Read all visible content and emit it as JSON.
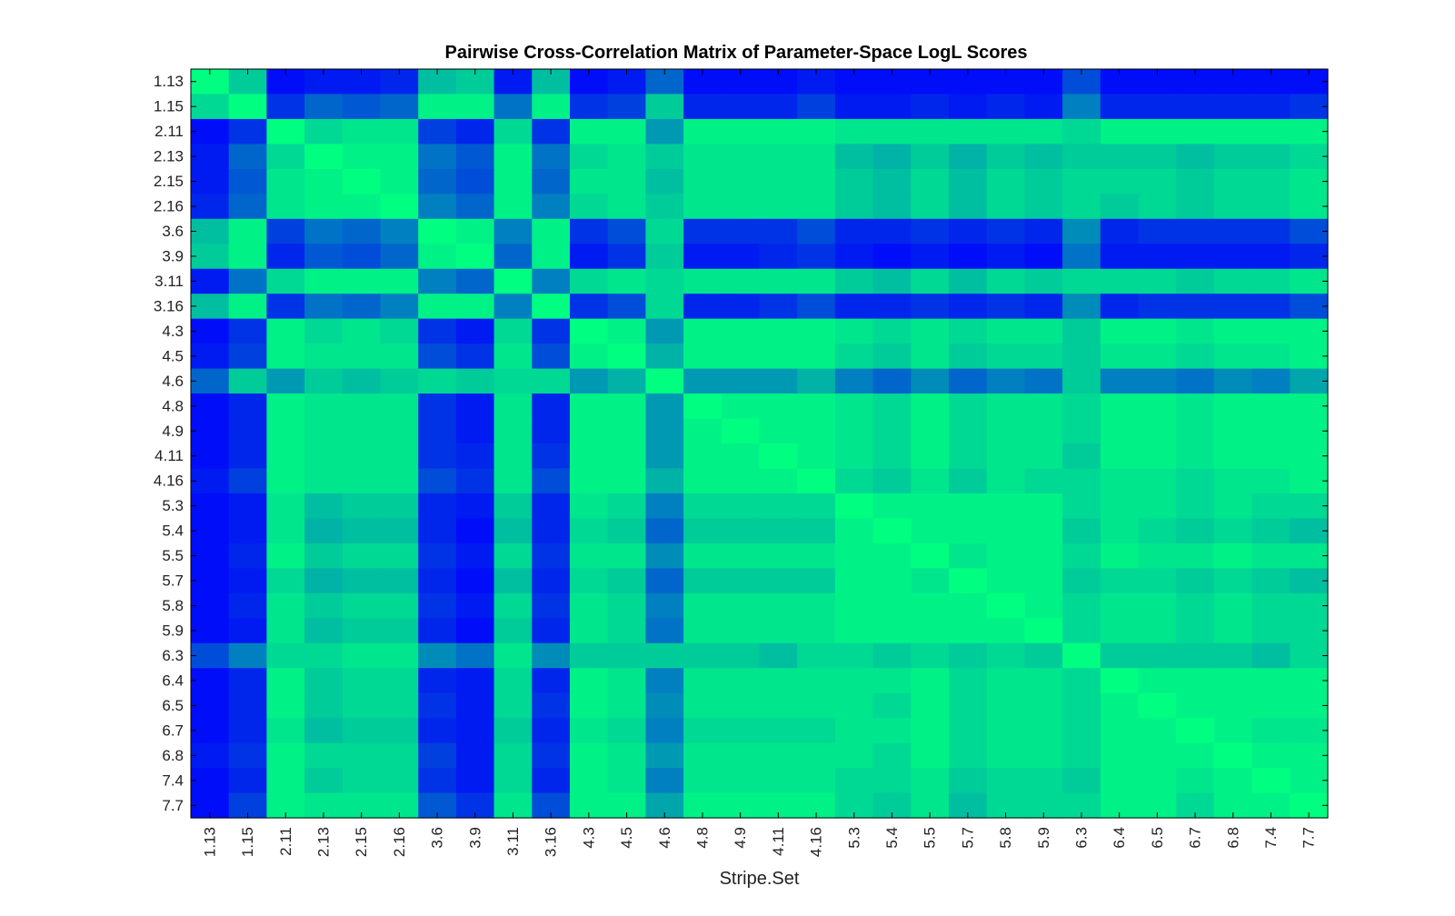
{
  "chart_data": {
    "type": "heatmap",
    "title": "Pairwise Cross-Correlation Matrix of Parameter-Space LogL Scores",
    "xlabel": "Stripe.Set",
    "ylabel": "",
    "labels": [
      "1.13",
      "1.15",
      "2.11",
      "2.13",
      "2.15",
      "2.16",
      "3.6",
      "3.9",
      "3.11",
      "3.16",
      "4.3",
      "4.5",
      "4.6",
      "4.8",
      "4.9",
      "4.11",
      "4.16",
      "5.3",
      "5.4",
      "5.5",
      "5.7",
      "5.8",
      "5.9",
      "6.3",
      "6.4",
      "6.5",
      "6.7",
      "6.8",
      "7.4",
      "7.7"
    ],
    "colormap": {
      "low": "#0000FF",
      "high": "#00FF80"
    },
    "value_range": [
      0,
      1
    ],
    "grid": false,
    "values": [
      [
        1.0,
        0.8,
        0.05,
        0.1,
        0.1,
        0.15,
        0.75,
        0.8,
        0.1,
        0.75,
        0.05,
        0.1,
        0.4,
        0.05,
        0.05,
        0.05,
        0.1,
        0.05,
        0.05,
        0.05,
        0.05,
        0.05,
        0.05,
        0.3,
        0.05,
        0.05,
        0.05,
        0.05,
        0.05,
        0.05
      ],
      [
        0.85,
        1.0,
        0.2,
        0.4,
        0.35,
        0.4,
        0.95,
        0.95,
        0.45,
        0.95,
        0.2,
        0.25,
        0.8,
        0.15,
        0.15,
        0.15,
        0.25,
        0.1,
        0.1,
        0.15,
        0.1,
        0.15,
        0.1,
        0.5,
        0.15,
        0.15,
        0.15,
        0.15,
        0.15,
        0.2
      ],
      [
        0.05,
        0.2,
        1.0,
        0.85,
        0.9,
        0.9,
        0.25,
        0.15,
        0.85,
        0.2,
        0.95,
        0.95,
        0.6,
        0.95,
        0.95,
        0.95,
        0.95,
        0.9,
        0.9,
        0.9,
        0.9,
        0.9,
        0.9,
        0.85,
        0.95,
        0.95,
        0.95,
        0.95,
        0.95,
        0.95
      ],
      [
        0.1,
        0.4,
        0.85,
        1.0,
        0.95,
        0.95,
        0.45,
        0.35,
        0.95,
        0.45,
        0.85,
        0.9,
        0.8,
        0.9,
        0.9,
        0.9,
        0.9,
        0.75,
        0.7,
        0.8,
        0.7,
        0.8,
        0.75,
        0.8,
        0.8,
        0.8,
        0.75,
        0.8,
        0.8,
        0.85
      ],
      [
        0.1,
        0.35,
        0.9,
        0.95,
        1.0,
        0.95,
        0.4,
        0.3,
        0.95,
        0.4,
        0.9,
        0.9,
        0.75,
        0.9,
        0.9,
        0.9,
        0.9,
        0.8,
        0.75,
        0.85,
        0.75,
        0.85,
        0.8,
        0.85,
        0.85,
        0.85,
        0.8,
        0.85,
        0.85,
        0.9
      ],
      [
        0.15,
        0.4,
        0.9,
        0.95,
        0.95,
        1.0,
        0.5,
        0.4,
        0.95,
        0.5,
        0.85,
        0.9,
        0.8,
        0.9,
        0.9,
        0.9,
        0.9,
        0.8,
        0.75,
        0.85,
        0.75,
        0.85,
        0.8,
        0.85,
        0.8,
        0.85,
        0.8,
        0.85,
        0.85,
        0.9
      ],
      [
        0.75,
        0.95,
        0.25,
        0.45,
        0.4,
        0.5,
        1.0,
        0.95,
        0.5,
        0.95,
        0.2,
        0.3,
        0.85,
        0.2,
        0.2,
        0.2,
        0.3,
        0.15,
        0.15,
        0.2,
        0.15,
        0.2,
        0.15,
        0.55,
        0.15,
        0.2,
        0.2,
        0.2,
        0.2,
        0.3
      ],
      [
        0.8,
        0.95,
        0.15,
        0.35,
        0.3,
        0.4,
        0.95,
        1.0,
        0.4,
        0.95,
        0.1,
        0.2,
        0.8,
        0.1,
        0.1,
        0.15,
        0.2,
        0.1,
        0.05,
        0.1,
        0.05,
        0.1,
        0.05,
        0.45,
        0.1,
        0.1,
        0.1,
        0.1,
        0.1,
        0.15
      ],
      [
        0.1,
        0.45,
        0.85,
        0.95,
        0.95,
        0.95,
        0.5,
        0.4,
        1.0,
        0.5,
        0.85,
        0.9,
        0.85,
        0.9,
        0.9,
        0.9,
        0.9,
        0.8,
        0.75,
        0.85,
        0.75,
        0.85,
        0.8,
        0.85,
        0.85,
        0.85,
        0.8,
        0.85,
        0.85,
        0.9
      ],
      [
        0.75,
        0.95,
        0.2,
        0.45,
        0.4,
        0.5,
        0.95,
        0.95,
        0.5,
        1.0,
        0.2,
        0.3,
        0.85,
        0.15,
        0.15,
        0.2,
        0.3,
        0.15,
        0.15,
        0.2,
        0.15,
        0.2,
        0.15,
        0.55,
        0.15,
        0.2,
        0.2,
        0.2,
        0.2,
        0.3
      ],
      [
        0.05,
        0.2,
        0.95,
        0.85,
        0.9,
        0.85,
        0.2,
        0.1,
        0.85,
        0.2,
        1.0,
        0.95,
        0.6,
        0.95,
        0.95,
        0.95,
        0.95,
        0.9,
        0.85,
        0.9,
        0.85,
        0.9,
        0.9,
        0.8,
        0.95,
        0.95,
        0.9,
        0.95,
        0.95,
        0.95
      ],
      [
        0.1,
        0.25,
        0.95,
        0.9,
        0.9,
        0.9,
        0.3,
        0.2,
        0.9,
        0.3,
        0.95,
        1.0,
        0.7,
        0.95,
        0.95,
        0.95,
        0.95,
        0.85,
        0.8,
        0.9,
        0.8,
        0.85,
        0.85,
        0.8,
        0.9,
        0.9,
        0.85,
        0.9,
        0.9,
        0.95
      ],
      [
        0.4,
        0.8,
        0.6,
        0.8,
        0.75,
        0.8,
        0.85,
        0.8,
        0.85,
        0.85,
        0.6,
        0.7,
        1.0,
        0.6,
        0.6,
        0.6,
        0.7,
        0.5,
        0.4,
        0.55,
        0.4,
        0.5,
        0.45,
        0.8,
        0.5,
        0.5,
        0.45,
        0.55,
        0.5,
        0.65
      ],
      [
        0.05,
        0.15,
        0.95,
        0.9,
        0.9,
        0.9,
        0.2,
        0.1,
        0.9,
        0.15,
        0.95,
        0.95,
        0.6,
        1.0,
        0.95,
        0.95,
        0.95,
        0.9,
        0.85,
        0.95,
        0.85,
        0.9,
        0.9,
        0.85,
        0.95,
        0.95,
        0.9,
        0.95,
        0.95,
        0.95
      ],
      [
        0.05,
        0.15,
        0.95,
        0.9,
        0.9,
        0.9,
        0.2,
        0.1,
        0.9,
        0.15,
        0.95,
        0.95,
        0.6,
        0.95,
        1.0,
        0.95,
        0.95,
        0.9,
        0.85,
        0.95,
        0.85,
        0.9,
        0.9,
        0.85,
        0.95,
        0.95,
        0.9,
        0.95,
        0.95,
        0.95
      ],
      [
        0.05,
        0.15,
        0.95,
        0.9,
        0.9,
        0.9,
        0.2,
        0.15,
        0.9,
        0.2,
        0.95,
        0.95,
        0.6,
        0.95,
        0.95,
        1.0,
        0.95,
        0.9,
        0.85,
        0.95,
        0.85,
        0.9,
        0.9,
        0.8,
        0.95,
        0.95,
        0.9,
        0.95,
        0.95,
        0.95
      ],
      [
        0.1,
        0.25,
        0.95,
        0.9,
        0.9,
        0.9,
        0.3,
        0.2,
        0.9,
        0.3,
        0.95,
        0.95,
        0.7,
        0.95,
        0.95,
        0.95,
        1.0,
        0.85,
        0.8,
        0.9,
        0.8,
        0.9,
        0.85,
        0.85,
        0.9,
        0.9,
        0.85,
        0.9,
        0.9,
        0.95
      ],
      [
        0.05,
        0.1,
        0.9,
        0.75,
        0.8,
        0.8,
        0.15,
        0.1,
        0.8,
        0.15,
        0.9,
        0.85,
        0.5,
        0.85,
        0.85,
        0.85,
        0.85,
        1.0,
        0.95,
        0.95,
        0.95,
        0.95,
        0.95,
        0.85,
        0.9,
        0.9,
        0.85,
        0.9,
        0.85,
        0.85
      ],
      [
        0.05,
        0.1,
        0.9,
        0.7,
        0.75,
        0.75,
        0.15,
        0.05,
        0.75,
        0.15,
        0.85,
        0.8,
        0.4,
        0.8,
        0.8,
        0.8,
        0.8,
        0.95,
        1.0,
        0.95,
        0.95,
        0.95,
        0.95,
        0.8,
        0.9,
        0.85,
        0.8,
        0.85,
        0.8,
        0.75
      ],
      [
        0.05,
        0.15,
        0.95,
        0.8,
        0.85,
        0.85,
        0.2,
        0.1,
        0.85,
        0.2,
        0.9,
        0.9,
        0.55,
        0.9,
        0.9,
        0.9,
        0.9,
        0.95,
        0.95,
        1.0,
        0.9,
        0.95,
        0.95,
        0.85,
        0.95,
        0.9,
        0.9,
        0.95,
        0.9,
        0.9
      ],
      [
        0.05,
        0.1,
        0.85,
        0.7,
        0.75,
        0.75,
        0.15,
        0.05,
        0.75,
        0.15,
        0.85,
        0.8,
        0.4,
        0.8,
        0.8,
        0.8,
        0.8,
        0.95,
        0.95,
        0.9,
        1.0,
        0.95,
        0.95,
        0.8,
        0.85,
        0.85,
        0.8,
        0.85,
        0.8,
        0.75
      ],
      [
        0.05,
        0.15,
        0.9,
        0.8,
        0.85,
        0.85,
        0.2,
        0.1,
        0.85,
        0.2,
        0.9,
        0.85,
        0.5,
        0.9,
        0.9,
        0.9,
        0.9,
        0.95,
        0.95,
        0.95,
        0.95,
        1.0,
        0.95,
        0.85,
        0.9,
        0.9,
        0.85,
        0.9,
        0.85,
        0.85
      ],
      [
        0.05,
        0.1,
        0.9,
        0.75,
        0.8,
        0.8,
        0.15,
        0.05,
        0.8,
        0.15,
        0.9,
        0.85,
        0.45,
        0.9,
        0.9,
        0.9,
        0.9,
        0.95,
        0.95,
        0.95,
        0.95,
        0.95,
        1.0,
        0.85,
        0.9,
        0.9,
        0.85,
        0.9,
        0.85,
        0.85
      ],
      [
        0.3,
        0.5,
        0.85,
        0.85,
        0.9,
        0.9,
        0.55,
        0.45,
        0.9,
        0.55,
        0.8,
        0.8,
        0.8,
        0.8,
        0.8,
        0.75,
        0.85,
        0.85,
        0.8,
        0.85,
        0.8,
        0.85,
        0.8,
        1.0,
        0.8,
        0.8,
        0.8,
        0.8,
        0.75,
        0.85
      ],
      [
        0.05,
        0.15,
        0.95,
        0.8,
        0.85,
        0.85,
        0.15,
        0.1,
        0.85,
        0.15,
        0.95,
        0.9,
        0.5,
        0.9,
        0.9,
        0.9,
        0.9,
        0.9,
        0.9,
        0.95,
        0.85,
        0.9,
        0.9,
        0.85,
        1.0,
        0.95,
        0.95,
        0.95,
        0.95,
        0.95
      ],
      [
        0.05,
        0.15,
        0.95,
        0.8,
        0.85,
        0.85,
        0.2,
        0.1,
        0.85,
        0.2,
        0.95,
        0.9,
        0.55,
        0.9,
        0.9,
        0.9,
        0.9,
        0.9,
        0.85,
        0.95,
        0.85,
        0.9,
        0.9,
        0.85,
        0.95,
        1.0,
        0.95,
        0.95,
        0.95,
        0.95
      ],
      [
        0.05,
        0.15,
        0.9,
        0.75,
        0.8,
        0.8,
        0.15,
        0.1,
        0.8,
        0.15,
        0.9,
        0.85,
        0.5,
        0.85,
        0.85,
        0.85,
        0.85,
        0.9,
        0.9,
        0.95,
        0.85,
        0.9,
        0.9,
        0.85,
        0.95,
        0.95,
        1.0,
        0.95,
        0.9,
        0.9
      ],
      [
        0.1,
        0.2,
        0.95,
        0.85,
        0.85,
        0.85,
        0.25,
        0.1,
        0.85,
        0.2,
        0.95,
        0.9,
        0.6,
        0.9,
        0.9,
        0.9,
        0.9,
        0.9,
        0.85,
        0.95,
        0.85,
        0.9,
        0.9,
        0.85,
        0.95,
        0.95,
        0.95,
        1.0,
        0.95,
        0.95
      ],
      [
        0.05,
        0.15,
        0.95,
        0.8,
        0.85,
        0.85,
        0.2,
        0.1,
        0.85,
        0.15,
        0.95,
        0.9,
        0.5,
        0.9,
        0.9,
        0.9,
        0.9,
        0.85,
        0.85,
        0.9,
        0.8,
        0.85,
        0.85,
        0.8,
        0.95,
        0.95,
        0.9,
        0.95,
        1.0,
        0.95
      ],
      [
        0.05,
        0.25,
        0.95,
        0.9,
        0.9,
        0.9,
        0.35,
        0.2,
        0.9,
        0.3,
        0.95,
        0.95,
        0.65,
        0.95,
        0.95,
        0.95,
        0.95,
        0.85,
        0.8,
        0.9,
        0.75,
        0.85,
        0.85,
        0.85,
        0.95,
        0.95,
        0.85,
        0.95,
        0.95,
        1.0
      ]
    ]
  }
}
